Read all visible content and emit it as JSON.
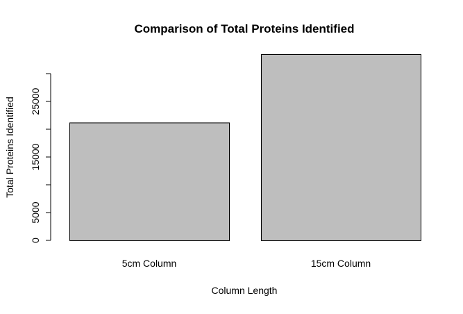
{
  "chart_data": {
    "type": "bar",
    "title": "Comparison of Total Proteins Identified",
    "xlabel": "Column Length",
    "ylabel": "Total Proteins Identified",
    "categories": [
      "5cm Column",
      "15cm Column"
    ],
    "values": [
      21200,
      33500
    ],
    "ylim": [
      0,
      33500
    ],
    "yticks": [
      0,
      5000,
      10000,
      15000,
      20000,
      25000,
      30000
    ],
    "ytick_labels": [
      "0",
      "5000",
      "",
      "15000",
      "",
      "25000",
      ""
    ],
    "bar_color": "#bebebe",
    "bar_edge_color": "#000000",
    "grid": false,
    "legend": "none"
  }
}
